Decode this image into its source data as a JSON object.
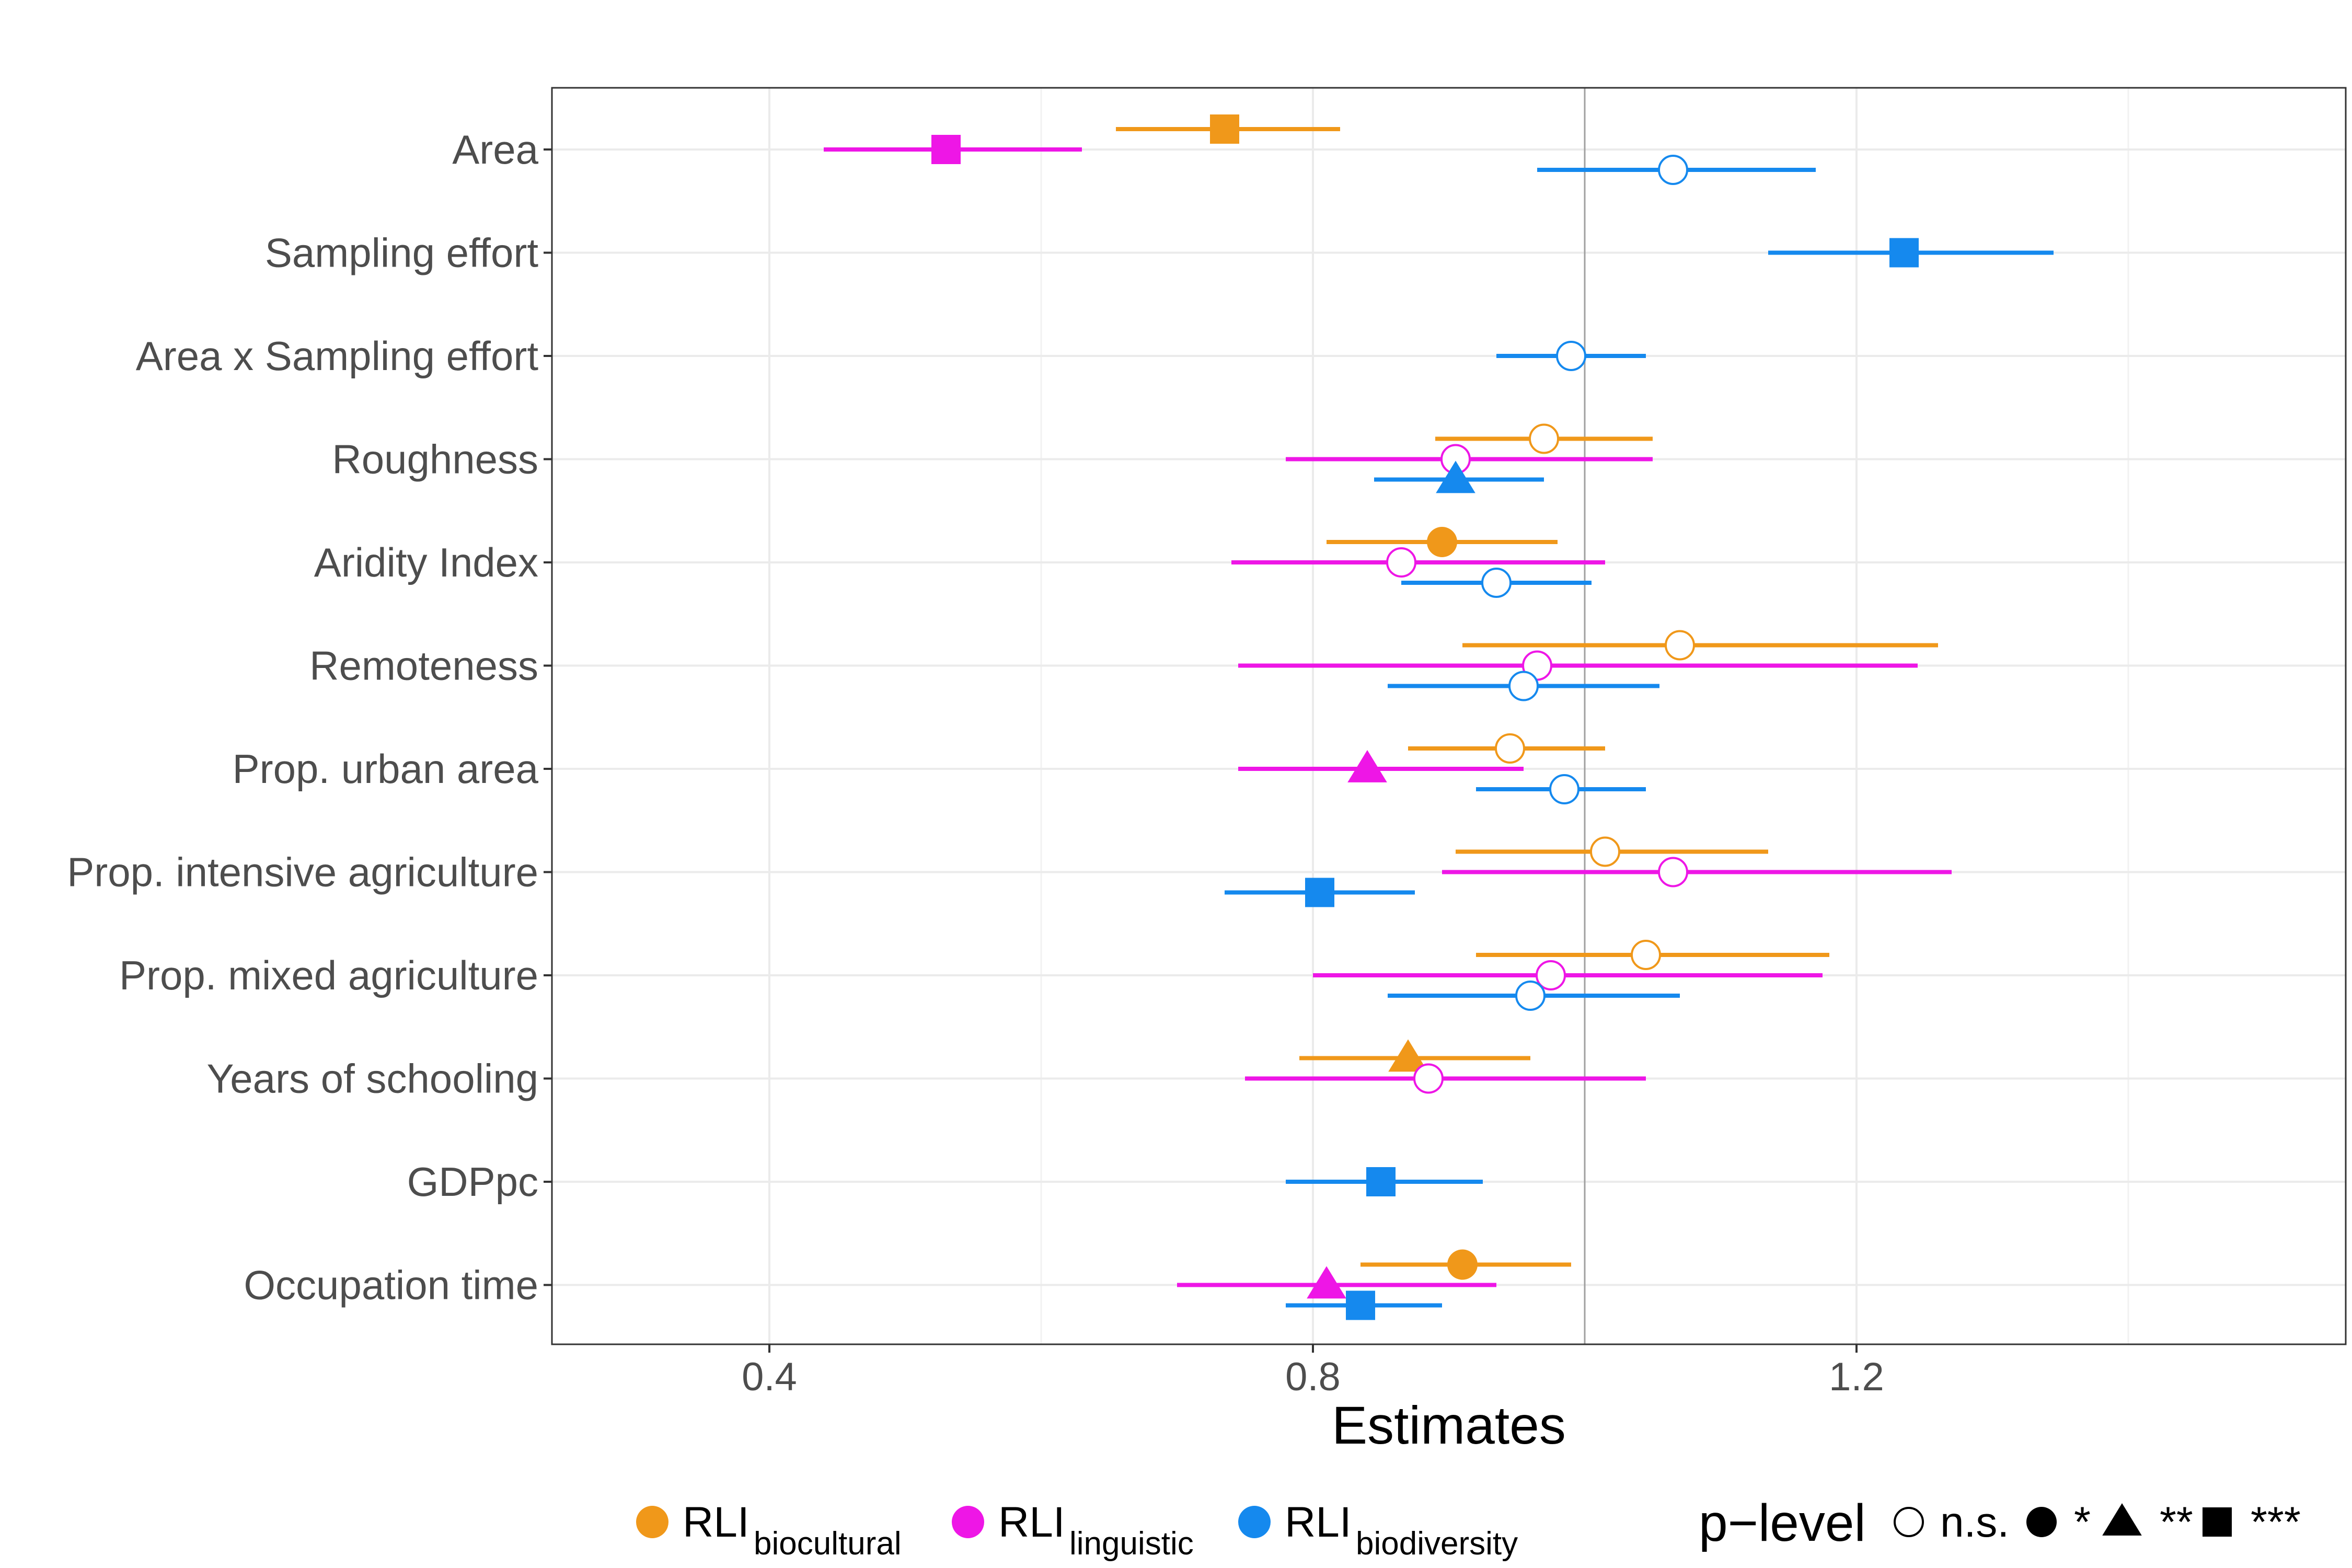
{
  "chart_data": {
    "type": "scatter",
    "subtype": "forest-plot",
    "title": "",
    "xlabel": "Estimates",
    "ylabel": "",
    "xlim": [
      0.24,
      1.56
    ],
    "xticks": [
      0.4,
      0.8,
      1.2
    ],
    "xtick_labels": [
      "0.4",
      "0.8",
      "1.2"
    ],
    "reference_line": 1.0,
    "grid": true,
    "legend_position": "bottom",
    "categories": [
      "Area",
      "Sampling effort",
      "Area x Sampling effort",
      "Roughness",
      "Aridity Index",
      "Remoteness",
      "Prop. urban area",
      "Prop. intensive agriculture",
      "Prop. mixed agriculture",
      "Years of schooling",
      "GDPpc",
      "Occupation time"
    ],
    "series": [
      {
        "name": "RLI",
        "name_sub": "biocultural",
        "color": "#F0981A",
        "points": [
          {
            "category": "Area",
            "estimate": 0.735,
            "low": 0.655,
            "high": 0.82,
            "p": "***"
          },
          {
            "category": "Roughness",
            "estimate": 0.97,
            "low": 0.89,
            "high": 1.05,
            "p": "n.s."
          },
          {
            "category": "Aridity Index",
            "estimate": 0.895,
            "low": 0.81,
            "high": 0.98,
            "p": "*"
          },
          {
            "category": "Remoteness",
            "estimate": 1.07,
            "low": 0.91,
            "high": 1.26,
            "p": "n.s."
          },
          {
            "category": "Prop. urban area",
            "estimate": 0.945,
            "low": 0.87,
            "high": 1.015,
            "p": "n.s."
          },
          {
            "category": "Prop. intensive agriculture",
            "estimate": 1.015,
            "low": 0.905,
            "high": 1.135,
            "p": "n.s."
          },
          {
            "category": "Prop. mixed agriculture",
            "estimate": 1.045,
            "low": 0.92,
            "high": 1.18,
            "p": "n.s."
          },
          {
            "category": "Years of schooling",
            "estimate": 0.87,
            "low": 0.79,
            "high": 0.96,
            "p": "**"
          },
          {
            "category": "Occupation time",
            "estimate": 0.91,
            "low": 0.835,
            "high": 0.99,
            "p": "*"
          }
        ]
      },
      {
        "name": "RLI",
        "name_sub": "linguistic",
        "color": "#EE16E6",
        "points": [
          {
            "category": "Area",
            "estimate": 0.53,
            "low": 0.44,
            "high": 0.63,
            "p": "***"
          },
          {
            "category": "Roughness",
            "estimate": 0.905,
            "low": 0.78,
            "high": 1.05,
            "p": "n.s."
          },
          {
            "category": "Aridity Index",
            "estimate": 0.865,
            "low": 0.74,
            "high": 1.015,
            "p": "n.s."
          },
          {
            "category": "Remoteness",
            "estimate": 0.965,
            "low": 0.745,
            "high": 1.245,
            "p": "n.s."
          },
          {
            "category": "Prop. urban area",
            "estimate": 0.84,
            "low": 0.745,
            "high": 0.955,
            "p": "**"
          },
          {
            "category": "Prop. intensive agriculture",
            "estimate": 1.065,
            "low": 0.895,
            "high": 1.27,
            "p": "n.s."
          },
          {
            "category": "Prop. mixed agriculture",
            "estimate": 0.975,
            "low": 0.8,
            "high": 1.175,
            "p": "n.s."
          },
          {
            "category": "Years of schooling",
            "estimate": 0.885,
            "low": 0.75,
            "high": 1.045,
            "p": "n.s."
          },
          {
            "category": "Occupation time",
            "estimate": 0.81,
            "low": 0.7,
            "high": 0.935,
            "p": "**"
          }
        ]
      },
      {
        "name": "RLI",
        "name_sub": "biodiversity",
        "color": "#1589EE",
        "points": [
          {
            "category": "Area",
            "estimate": 1.065,
            "low": 0.965,
            "high": 1.17,
            "p": "n.s."
          },
          {
            "category": "Sampling effort",
            "estimate": 1.235,
            "low": 1.135,
            "high": 1.345,
            "p": "***"
          },
          {
            "category": "Area x Sampling effort",
            "estimate": 0.99,
            "low": 0.935,
            "high": 1.045,
            "p": "n.s."
          },
          {
            "category": "Roughness",
            "estimate": 0.905,
            "low": 0.845,
            "high": 0.97,
            "p": "**"
          },
          {
            "category": "Aridity Index",
            "estimate": 0.935,
            "low": 0.865,
            "high": 1.005,
            "p": "n.s."
          },
          {
            "category": "Remoteness",
            "estimate": 0.955,
            "low": 0.855,
            "high": 1.055,
            "p": "n.s."
          },
          {
            "category": "Prop. urban area",
            "estimate": 0.985,
            "low": 0.92,
            "high": 1.045,
            "p": "n.s."
          },
          {
            "category": "Prop. intensive agriculture",
            "estimate": 0.805,
            "low": 0.735,
            "high": 0.875,
            "p": "***"
          },
          {
            "category": "Prop. mixed agriculture",
            "estimate": 0.96,
            "low": 0.855,
            "high": 1.07,
            "p": "n.s."
          },
          {
            "category": "GDPpc",
            "estimate": 0.85,
            "low": 0.78,
            "high": 0.925,
            "p": "***"
          },
          {
            "category": "Occupation time",
            "estimate": 0.835,
            "low": 0.78,
            "high": 0.895,
            "p": "***"
          }
        ]
      }
    ],
    "shape_legend": {
      "title": "p−level",
      "items": [
        {
          "shape": "open-circle",
          "label": "n.s."
        },
        {
          "shape": "filled-circle",
          "label": "*"
        },
        {
          "shape": "triangle",
          "label": "**"
        },
        {
          "shape": "square",
          "label": "***"
        }
      ]
    }
  }
}
